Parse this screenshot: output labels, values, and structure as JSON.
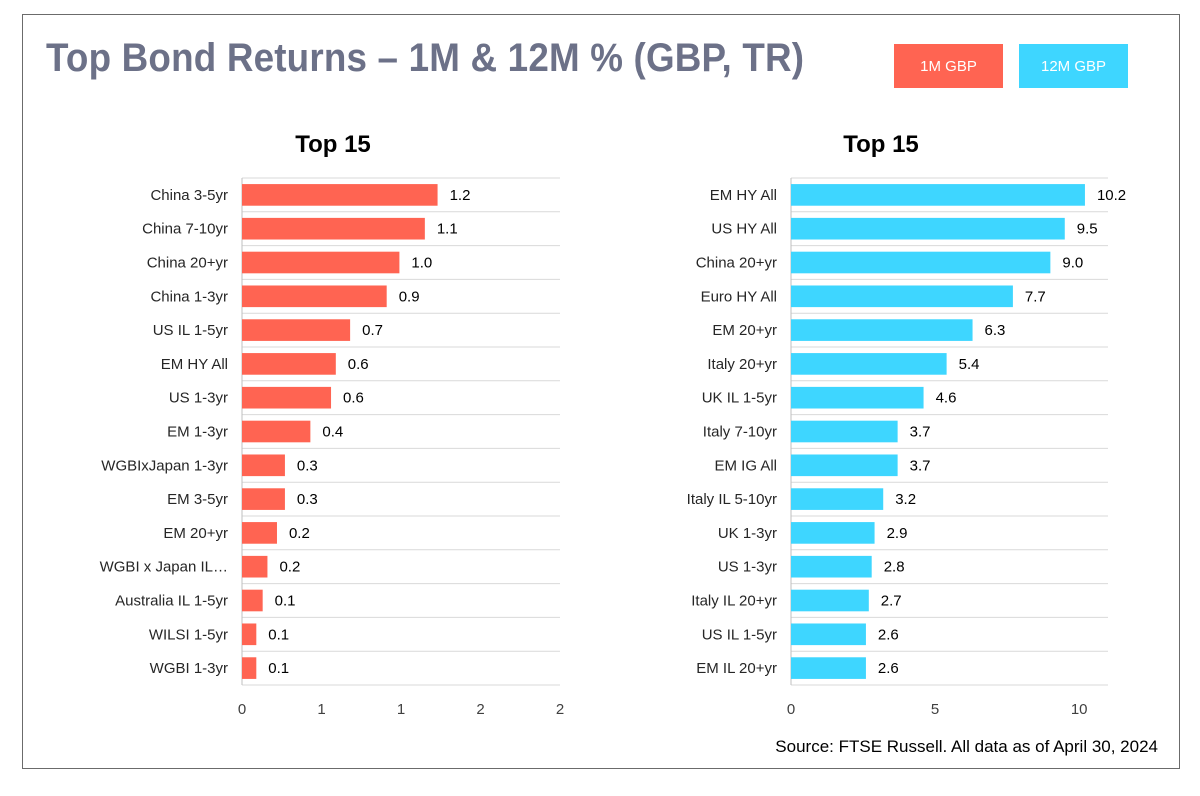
{
  "title": "Top Bond Returns – 1M & 12M % (GBP, TR)",
  "legend": [
    {
      "label": "1M GBP",
      "color": "#ff6452"
    },
    {
      "label": "12M GBP",
      "color": "#3ed6ff"
    }
  ],
  "source": "Source: FTSE Russell. All data as of April 30, 2024",
  "chart_data": [
    {
      "type": "bar",
      "orientation": "horizontal",
      "title": "Top 15",
      "series_label": "1M GBP",
      "color": "#ff6452",
      "categories": [
        "China 3-5yr",
        "China 7-10yr",
        "China 20+yr",
        "China 1-3yr",
        "US IL 1-5yr",
        "EM HY All",
        "US 1-3yr",
        "EM 1-3yr",
        "WGBIxJapan 1-3yr",
        "EM 3-5yr",
        "EM 20+yr",
        "WGBI x Japan IL…",
        "Australia IL 1-5yr",
        "WILSI 1-5yr",
        "WGBI 1-3yr"
      ],
      "values": [
        1.23,
        1.15,
        0.99,
        0.91,
        0.68,
        0.59,
        0.56,
        0.43,
        0.27,
        0.27,
        0.22,
        0.16,
        0.13,
        0.09,
        0.09
      ],
      "data_labels": [
        "1.2",
        "1.1",
        "1.0",
        "0.9",
        "0.7",
        "0.6",
        "0.6",
        "0.4",
        "0.3",
        "0.3",
        "0.2",
        "0.2",
        "0.1",
        "0.1",
        "0.1"
      ],
      "xlim": [
        0,
        2
      ],
      "ticks": [
        0,
        0.5,
        1,
        1.5,
        2
      ],
      "tick_labels": [
        "0",
        "1",
        "1",
        "2",
        "2"
      ],
      "grid": true
    },
    {
      "type": "bar",
      "orientation": "horizontal",
      "title": "Top 15",
      "series_label": "12M GBP",
      "color": "#3ed6ff",
      "categories": [
        "EM HY All",
        "US HY All",
        "China 20+yr",
        "Euro HY All",
        "EM 20+yr",
        "Italy 20+yr",
        "UK IL 1-5yr",
        "Italy 7-10yr",
        "EM IG All",
        "Italy IL 5-10yr",
        "UK 1-3yr",
        "US 1-3yr",
        "Italy IL 20+yr",
        "US IL 1-5yr",
        "EM IL 20+yr"
      ],
      "values": [
        10.2,
        9.5,
        9.0,
        7.7,
        6.3,
        5.4,
        4.6,
        3.7,
        3.7,
        3.2,
        2.9,
        2.8,
        2.7,
        2.6,
        2.6
      ],
      "data_labels": [
        "10.2",
        "9.5",
        "9.0",
        "7.7",
        "6.3",
        "5.4",
        "4.6",
        "3.7",
        "3.7",
        "3.2",
        "2.9",
        "2.8",
        "2.7",
        "2.6",
        "2.6"
      ],
      "xlim": [
        0,
        11
      ],
      "ticks": [
        0,
        5,
        10
      ],
      "tick_labels": [
        "0",
        "5",
        "10"
      ],
      "grid": true
    }
  ]
}
